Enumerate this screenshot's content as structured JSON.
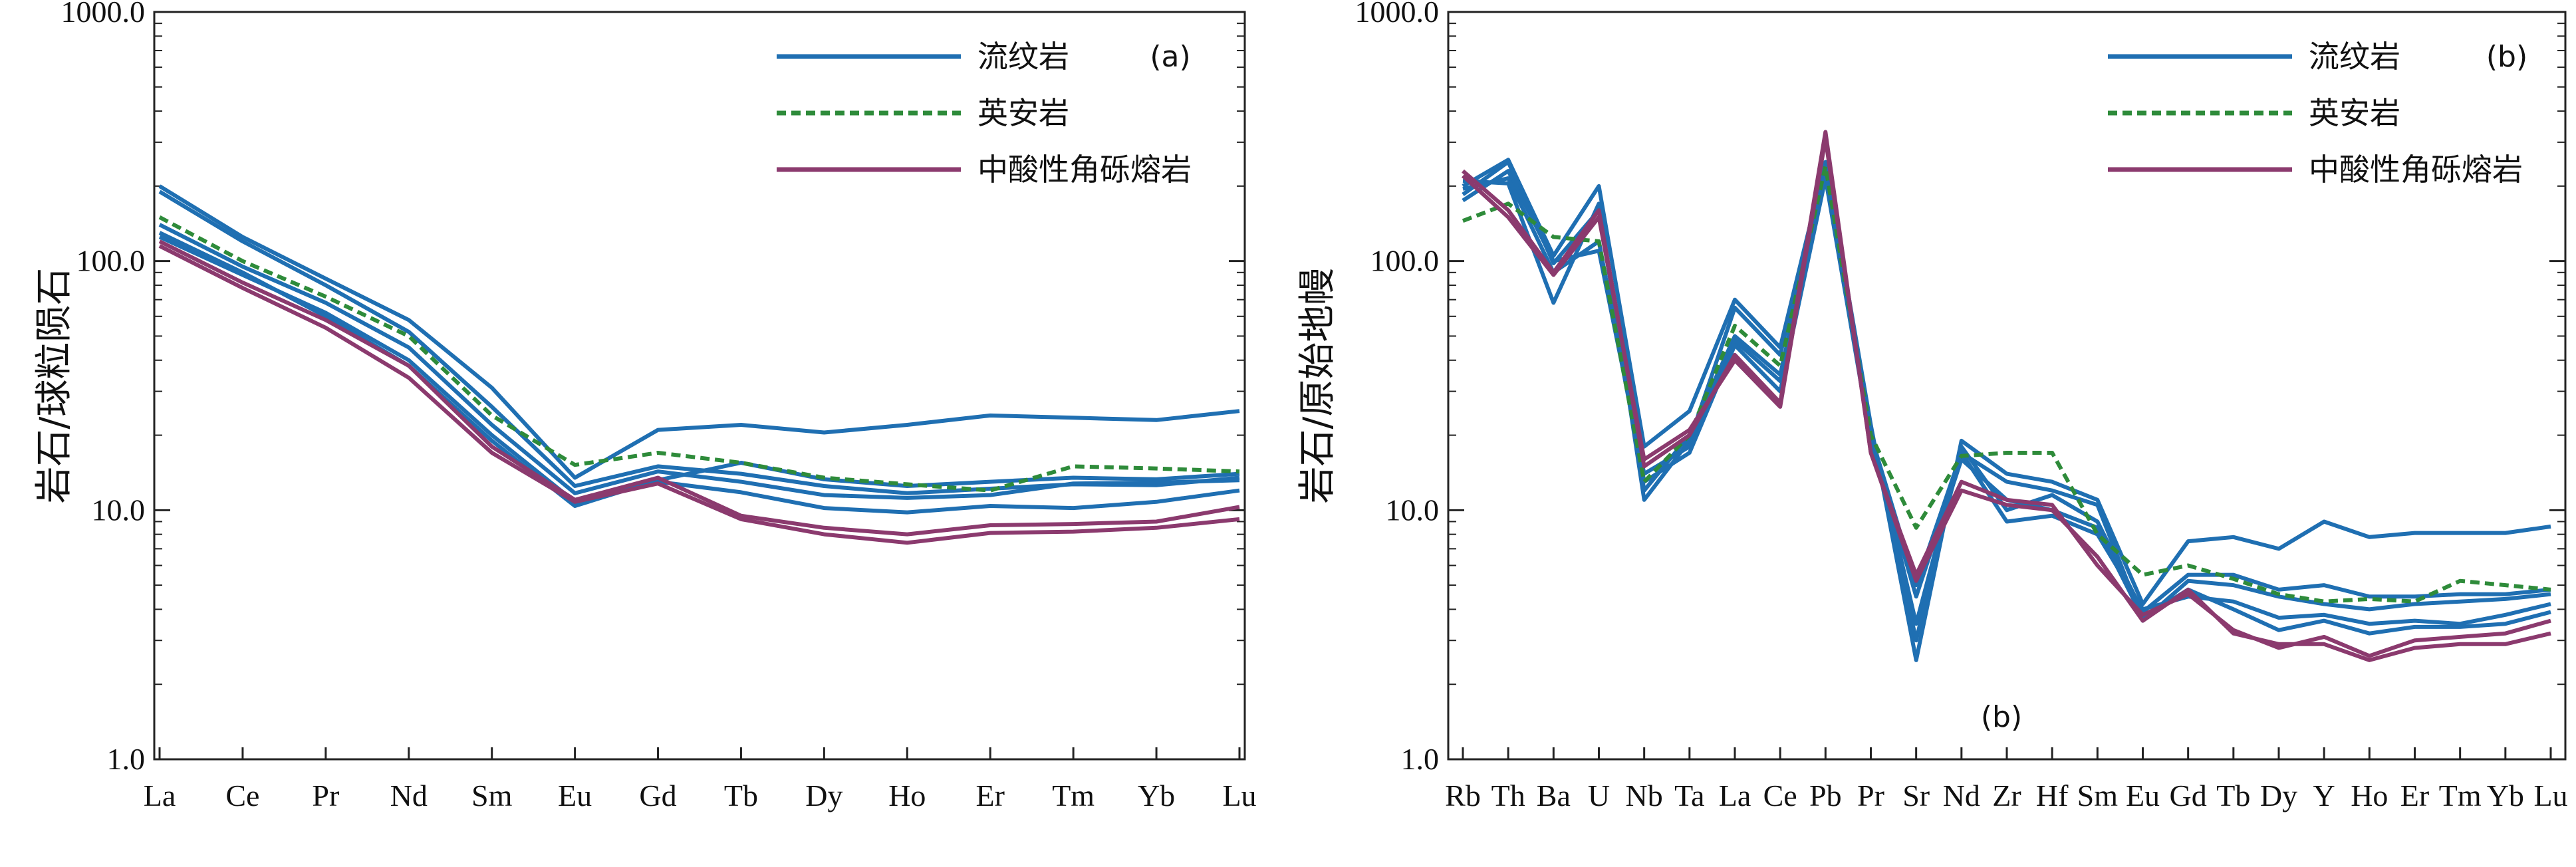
{
  "chart_data": [
    {
      "type": "line",
      "panel_tag": "(a)",
      "ylabel": "岩石/球粒陨石",
      "yscale": "log",
      "ylim": [
        1,
        1000
      ],
      "yticks": [
        "1.0",
        "10.0",
        "100.0",
        "1000.0"
      ],
      "categories": [
        "La",
        "Ce",
        "Pr",
        "Nd",
        "Sm",
        "Eu",
        "Gd",
        "Tb",
        "Dy",
        "Ho",
        "Er",
        "Tm",
        "Yb",
        "Lu"
      ],
      "legend": [
        {
          "name": "流纹岩",
          "color": "#1f6fb2",
          "dash": "solid"
        },
        {
          "name": "英安岩",
          "color": "#2e8b3a",
          "dash": "dashed"
        },
        {
          "name": "中酸性角砾熔岩",
          "color": "#8b3a6e",
          "dash": "solid"
        }
      ],
      "series": [
        {
          "group": "流纹岩",
          "values": [
            200,
            125,
            85,
            58,
            31,
            13.5,
            21,
            22,
            20.5,
            22,
            24,
            23.5,
            23,
            25
          ]
        },
        {
          "group": "流纹岩",
          "values": [
            190,
            120,
            80,
            52,
            26,
            12.5,
            15,
            14,
            12.5,
            11.7,
            12.2,
            12.7,
            12.6,
            13.5
          ]
        },
        {
          "group": "流纹岩",
          "values": [
            140,
            95,
            68,
            45,
            22,
            11.7,
            14.3,
            13,
            11.5,
            11.2,
            11.5,
            12.8,
            12.9,
            13.2
          ]
        },
        {
          "group": "流纹岩",
          "values": [
            125,
            88,
            62,
            40,
            20,
            10.8,
            13,
            11.8,
            10.2,
            9.8,
            10.4,
            10.2,
            10.8,
            12
          ]
        },
        {
          "group": "流纹岩",
          "values": [
            130,
            90,
            60,
            38,
            19,
            10.4,
            13.2,
            15.5,
            13.3,
            12.5,
            13,
            13.5,
            13.3,
            14
          ]
        },
        {
          "group": "英安岩",
          "values": [
            150,
            100,
            72,
            50,
            24,
            15.2,
            17,
            15.5,
            13.5,
            12.7,
            12,
            15,
            14.7,
            14.3
          ]
        },
        {
          "group": "中酸性角砾熔岩",
          "values": [
            120,
            82,
            58,
            38,
            18,
            11,
            13.5,
            9.5,
            8.5,
            8,
            8.7,
            8.8,
            9,
            10.3
          ]
        },
        {
          "group": "中酸性角砾熔岩",
          "values": [
            115,
            78,
            54,
            34,
            17,
            10.8,
            12.8,
            9.2,
            8,
            7.4,
            8.1,
            8.2,
            8.5,
            9.2
          ]
        }
      ]
    },
    {
      "type": "line",
      "panel_tag": "(b)",
      "footer_tag": "(b)",
      "ylabel": "岩石/原始地幔",
      "yscale": "log",
      "ylim": [
        1,
        1000
      ],
      "yticks": [
        "1.0",
        "10.0",
        "100.0",
        "1000.0"
      ],
      "categories": [
        "Rb",
        "Th",
        "Ba",
        "U",
        "Nb",
        "Ta",
        "La",
        "Ce",
        "Pb",
        "Pr",
        "Sr",
        "Nd",
        "Zr",
        "Hf",
        "Sm",
        "Eu",
        "Gd",
        "Tb",
        "Dy",
        "Y",
        "Ho",
        "Er",
        "Tm",
        "Yb",
        "Lu"
      ],
      "legend": [
        {
          "name": "流纹岩",
          "color": "#1f6fb2",
          "dash": "solid"
        },
        {
          "name": "英安岩",
          "color": "#2e8b3a",
          "dash": "dashed"
        },
        {
          "name": "中酸性角砾熔岩",
          "color": "#8b3a6e",
          "dash": "solid"
        }
      ],
      "series": [
        {
          "group": "流纹岩",
          "values": [
            200,
            255,
            105,
            200,
            18,
            25,
            70,
            45,
            250,
            22,
            2.5,
            19,
            14,
            13,
            11,
            4.2,
            7.5,
            7.8,
            7,
            9,
            7.8,
            8.1,
            8.1,
            8.1,
            8.6
          ]
        },
        {
          "group": "流纹岩",
          "values": [
            210,
            205,
            68,
            170,
            11,
            19,
            65,
            42,
            240,
            21,
            3.5,
            17,
            13,
            12,
            10.5,
            3.6,
            5.2,
            5,
            4.5,
            4.2,
            4,
            4.2,
            4.3,
            4.4,
            4.6
          ]
        },
        {
          "group": "流纹岩",
          "values": [
            185,
            250,
            98,
            160,
            12,
            20,
            50,
            35,
            230,
            21,
            3,
            18,
            10,
            11.5,
            9,
            3.9,
            5.5,
            5.5,
            4.8,
            5,
            4.5,
            4.5,
            4.6,
            4.6,
            4.8
          ]
        },
        {
          "group": "流纹岩",
          "values": [
            175,
            230,
            100,
            110,
            14,
            18,
            48,
            33,
            220,
            20,
            5,
            17,
            9,
            9.5,
            8,
            4,
            4.5,
            4.3,
            3.7,
            3.8,
            3.5,
            3.6,
            3.5,
            3.8,
            4.2
          ]
        },
        {
          "group": "流纹岩",
          "values": [
            195,
            215,
            90,
            120,
            13,
            17,
            46,
            30,
            215,
            19,
            4.5,
            16,
            11,
            10,
            8.5,
            3.7,
            4.8,
            4,
            3.3,
            3.6,
            3.2,
            3.4,
            3.4,
            3.5,
            3.9
          ]
        },
        {
          "group": "英安岩",
          "values": [
            145,
            170,
            125,
            120,
            13,
            20,
            55,
            38,
            240,
            20,
            8.5,
            16.5,
            17,
            17,
            8,
            5.5,
            6,
            5.3,
            4.6,
            4.3,
            4.4,
            4.3,
            5.2,
            5,
            4.8
          ]
        },
        {
          "group": "中酸性角砾熔岩",
          "values": [
            230,
            160,
            90,
            160,
            15,
            20,
            42,
            27,
            330,
            17,
            5.5,
            13,
            11,
            10.5,
            6,
            3.8,
            4.6,
            3.3,
            2.8,
            3.1,
            2.6,
            3,
            3.1,
            3.2,
            3.6
          ]
        },
        {
          "group": "中酸性角砾熔岩",
          "values": [
            220,
            150,
            88,
            150,
            16,
            21,
            40,
            26,
            310,
            17,
            5.2,
            12,
            10.5,
            10,
            6.5,
            3.6,
            4.8,
            3.2,
            2.9,
            2.9,
            2.5,
            2.8,
            2.9,
            2.9,
            3.2
          ]
        }
      ]
    }
  ]
}
